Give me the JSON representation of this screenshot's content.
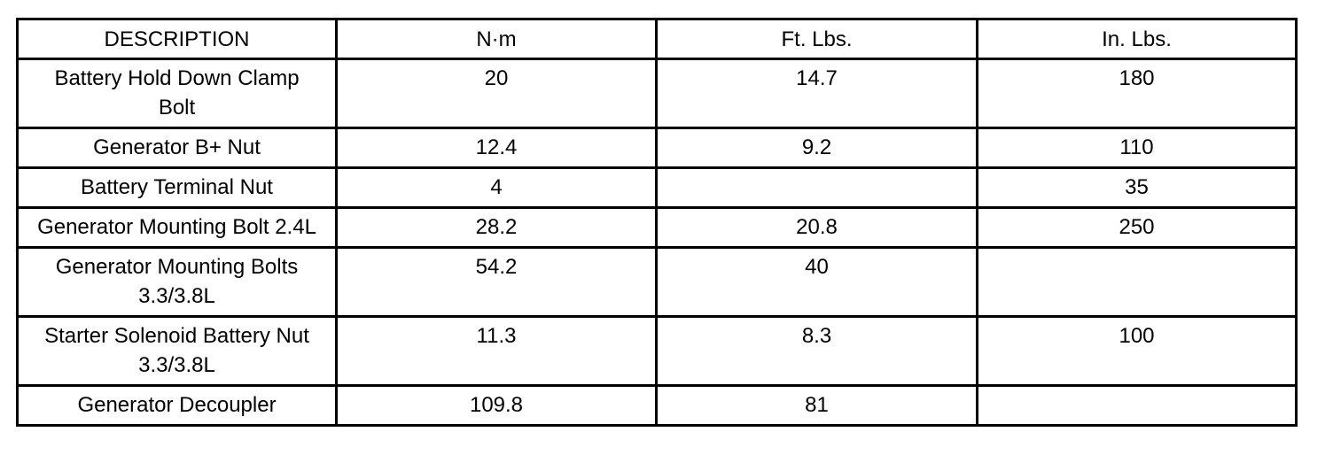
{
  "table": {
    "header": [
      "DESCRIPTION",
      "N·m",
      "Ft. Lbs.",
      "In. Lbs."
    ],
    "rows": [
      [
        "Battery Hold Down Clamp Bolt",
        20,
        14.7,
        180
      ],
      [
        "Generator B+ Nut",
        12.4,
        9.2,
        110
      ],
      [
        "Battery Terminal Nut",
        4,
        null,
        35
      ],
      [
        "Generator Mounting Bolt 2.4L",
        28.2,
        20.8,
        250
      ],
      [
        "Generator Mounting Bolts 3.3/3.8L",
        54.2,
        40,
        null
      ],
      [
        "Starter Solenoid Battery Nut 3.3/3.8L",
        11.3,
        8.3,
        100
      ],
      [
        "Generator Decoupler",
        109.8,
        81,
        null
      ]
    ]
  }
}
